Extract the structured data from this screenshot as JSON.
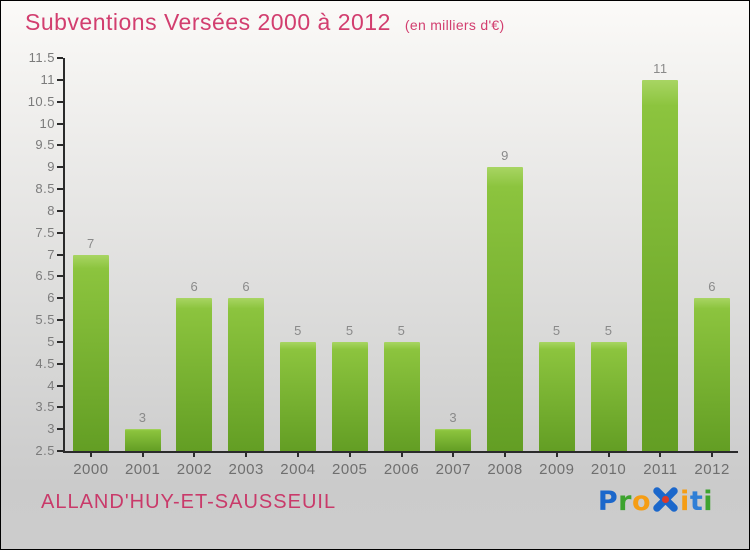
{
  "header": {
    "title": "Subventions Versées 2000 à 2012",
    "subtitle": "(en milliers d'€)"
  },
  "chart_data": {
    "type": "bar",
    "title": "Subventions Versées 2000 à 2012 (en milliers d'€)",
    "categories": [
      "2000",
      "2001",
      "2002",
      "2003",
      "2004",
      "2005",
      "2006",
      "2007",
      "2008",
      "2009",
      "2010",
      "2011",
      "2012"
    ],
    "values": [
      7,
      3,
      6,
      6,
      5,
      5,
      5,
      3,
      9,
      5,
      5,
      11,
      6
    ],
    "xlabel": "",
    "ylabel": "",
    "ylim": [
      2.5,
      11.5
    ],
    "ytick_step": 0.5,
    "bars_start_at_axis_min": true,
    "grid": false,
    "legend": false,
    "value_labels_shown": true,
    "colors": {
      "bar_top": "#a8d563",
      "bar_mid": "#8cc43e",
      "bar_bottom": "#639e24",
      "axis": "#2b2b2b",
      "y_tick_label": "#7b7b7b",
      "value_label": "#8a8a8a",
      "category_label": "#6f6f6f"
    }
  },
  "footer": {
    "location": "ALLAND'HUY-ET-SAUSSEUIL",
    "brand": {
      "name": "Proxiti",
      "letters": [
        {
          "char": "P",
          "color": "#1b67cb"
        },
        {
          "char": "r",
          "color": "#3da32e"
        },
        {
          "char": "o",
          "color": "#f59d14"
        },
        {
          "char": "x",
          "color": "#1b67cb",
          "center_dot_color": "#d93a2b",
          "icon": true
        },
        {
          "char": "i",
          "color": "#f59d14"
        },
        {
          "char": "t",
          "color": "#2f7fd6"
        },
        {
          "char": "i",
          "color": "#3da32e"
        }
      ]
    }
  },
  "colors": {
    "accent_title": "#d23e6f",
    "accent_location": "#c93a6a",
    "background_top": "#fbfaf8",
    "background_bottom": "#cbcbcb",
    "frame_border": "#000000"
  }
}
